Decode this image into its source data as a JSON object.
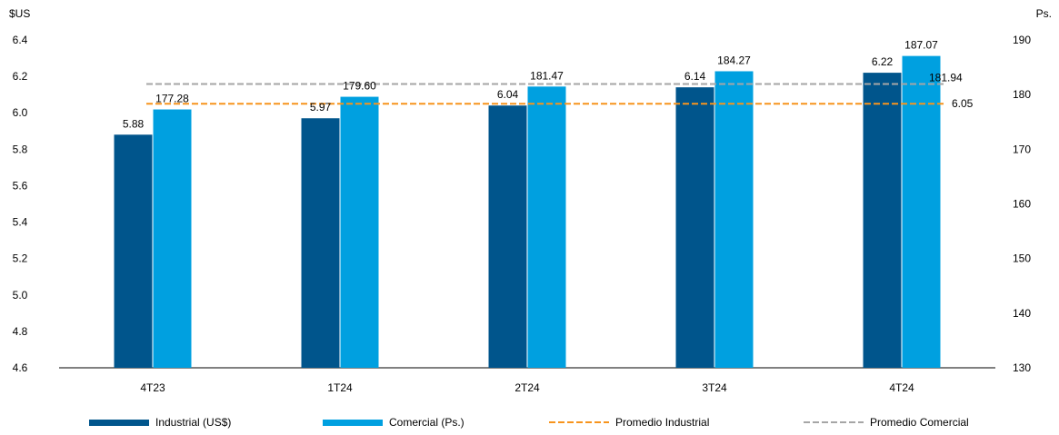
{
  "chart_data": {
    "type": "bar",
    "categories": [
      "4T23",
      "1T24",
      "2T24",
      "3T24",
      "4T24"
    ],
    "y_left": {
      "label": "$US",
      "ylim": [
        4.6,
        6.4
      ],
      "ticks": [
        "4.6",
        "4.8",
        "5.0",
        "5.2",
        "5.4",
        "5.6",
        "5.8",
        "6.0",
        "6.2",
        "6.4"
      ]
    },
    "y_right": {
      "label": "Ps.",
      "ylim": [
        130,
        190
      ],
      "ticks": [
        "130",
        "140",
        "150",
        "160",
        "170",
        "180",
        "190"
      ]
    },
    "series": [
      {
        "name": "Industrial (US$)",
        "axis": "left",
        "color": "#00558c",
        "values": [
          5.88,
          5.97,
          6.04,
          6.14,
          6.22
        ],
        "labels": [
          "5.88",
          "5.97",
          "6.04",
          "6.14",
          "6.22"
        ]
      },
      {
        "name": "Comercial (Ps.)",
        "axis": "right",
        "color": "#00a0e0",
        "values": [
          177.28,
          179.6,
          181.47,
          184.27,
          187.07
        ],
        "labels": [
          "177.28",
          "179.60",
          "181.47",
          "184.27",
          "187.07"
        ]
      }
    ],
    "averages": [
      {
        "name": "Promedio Industrial",
        "axis": "left",
        "value": 6.05,
        "label": "6.05",
        "color": "#f7941d",
        "style": "dashed"
      },
      {
        "name": "Promedio Comercial",
        "axis": "right",
        "value": 181.94,
        "label": "181.94",
        "color": "#a6a6a6",
        "style": "dashed"
      }
    ],
    "legend": "bottom",
    "grid": false
  }
}
